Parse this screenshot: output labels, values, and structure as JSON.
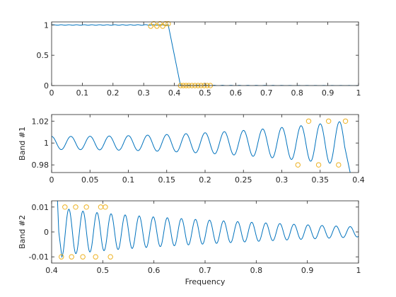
{
  "colors": {
    "line": "#0072BD",
    "marker": "#EDB120",
    "axis": "#262626"
  },
  "chart_data": [
    {
      "type": "line",
      "title": "",
      "xlabel": "",
      "ylabel": "",
      "xlim": [
        0,
        1
      ],
      "ylim": [
        0,
        1.05
      ],
      "xticks": [
        0,
        0.1,
        0.2,
        0.3,
        0.4,
        0.5,
        0.6,
        0.7,
        0.8,
        0.9,
        1
      ],
      "xtick_labels": [
        "0",
        "0.1",
        "0.2",
        "0.3",
        "0.4",
        "0.5",
        "0.6",
        "0.7",
        "0.8",
        "0.9",
        "1"
      ],
      "yticks": [
        0,
        0.5,
        1
      ],
      "ytick_labels": [
        "0",
        "0.5",
        "1"
      ],
      "grid": false,
      "legend": "none",
      "response": {
        "passband_edge": 0.38,
        "stopband_edge": 0.42,
        "pass_level": 1.0,
        "stop_level": 0.0,
        "pass_ripple": 0.01
      },
      "markers": {
        "x": [
          0.323,
          0.333,
          0.343,
          0.353,
          0.362,
          0.371,
          0.38,
          0.42,
          0.429,
          0.438,
          0.447,
          0.457,
          0.467,
          0.477,
          0.487,
          0.497,
          0.507,
          0.517
        ],
        "y": [
          0.98,
          1.02,
          0.98,
          1.02,
          0.98,
          1.02,
          1.02,
          0.0,
          0.0,
          0.0,
          0.0,
          0.0,
          0.0,
          0.0,
          0.0,
          0.0,
          0.0,
          0.0
        ]
      }
    },
    {
      "type": "line",
      "title": "",
      "xlabel": "",
      "ylabel": "Band #1",
      "xlim": [
        0,
        0.4
      ],
      "ylim": [
        0.973,
        1.026
      ],
      "xticks": [
        0,
        0.05,
        0.1,
        0.15,
        0.2,
        0.25,
        0.3,
        0.35,
        0.4
      ],
      "xtick_labels": [
        "0",
        "0.05",
        "0.1",
        "0.15",
        "0.2",
        "0.25",
        "0.3",
        "0.35",
        "0.4"
      ],
      "yticks": [
        0.98,
        1,
        1.02
      ],
      "ytick_labels": [
        "0.98",
        "1",
        "1.02"
      ],
      "grid": false,
      "legend": "none",
      "ripple": {
        "center": 1.0,
        "amplitude_start": 0.006,
        "amplitude_end": 0.02,
        "period": 0.025,
        "end_x": 0.382
      },
      "markers": {
        "x": [
          0.321,
          0.335,
          0.348,
          0.361,
          0.374,
          0.383
        ],
        "y": [
          0.98,
          1.02,
          0.98,
          1.02,
          0.98,
          1.02
        ]
      }
    },
    {
      "type": "line",
      "title": "",
      "xlabel": "Frequency",
      "ylabel": "Band #2",
      "xlim": [
        0.4,
        1
      ],
      "ylim": [
        -0.0125,
        0.0125
      ],
      "xticks": [
        0.4,
        0.5,
        0.6,
        0.7,
        0.8,
        0.9,
        1
      ],
      "xtick_labels": [
        "0.4",
        "0.5",
        "0.6",
        "0.7",
        "0.8",
        "0.9",
        "1"
      ],
      "yticks": [
        -0.01,
        0,
        0.01
      ],
      "ytick_labels": [
        "-0.01",
        "0",
        "0.01"
      ],
      "grid": false,
      "legend": "none",
      "ripple": {
        "center": 0.0,
        "amplitude_start": 0.01,
        "amplitude_end": 0.002,
        "period": 0.0275,
        "start_x": 0.42
      },
      "markers": {
        "x": [
          0.419,
          0.426,
          0.439,
          0.447,
          0.461,
          0.468,
          0.486,
          0.496,
          0.505,
          0.515
        ],
        "y": [
          -0.01,
          0.01,
          -0.01,
          0.01,
          -0.01,
          0.01,
          -0.01,
          0.01,
          0.01,
          -0.01
        ]
      }
    }
  ]
}
